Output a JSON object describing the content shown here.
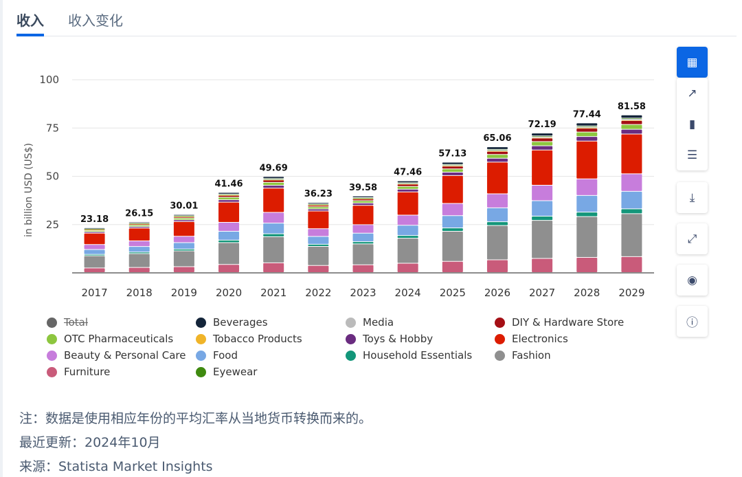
{
  "tabs": [
    {
      "label": "收入"
    },
    {
      "label": "收入变化"
    }
  ],
  "sidebar": [
    {
      "icon": "dashboard-icon",
      "glyph": "▦"
    },
    {
      "icon": "trend-icon",
      "glyph": "↗"
    },
    {
      "icon": "bar-chart-icon",
      "glyph": "▮"
    },
    {
      "icon": "table-icon",
      "glyph": "☰"
    },
    {
      "icon": "download-icon",
      "glyph": "⤓"
    },
    {
      "icon": "fullscreen-icon",
      "glyph": "⤢"
    },
    {
      "icon": "eye-icon",
      "glyph": "◉"
    },
    {
      "icon": "info-icon",
      "glyph": "ⓘ"
    }
  ],
  "chart_data": {
    "type": "bar",
    "stacked": true,
    "ylabel": "in billion USD (US$)",
    "ylim": [
      0,
      100
    ],
    "yticks": [
      25,
      50,
      75,
      100
    ],
    "grid": true,
    "categories": [
      "2017",
      "2018",
      "2019",
      "2020",
      "2021",
      "2022",
      "2023",
      "2024",
      "2025",
      "2026",
      "2027",
      "2028",
      "2029"
    ],
    "totals": [
      23.18,
      26.15,
      30.01,
      41.46,
      49.69,
      36.23,
      39.58,
      47.46,
      57.13,
      65.06,
      72.19,
      77.44,
      81.58
    ],
    "total_labels": [
      "23.18",
      "26.15",
      "30.01",
      "41.46",
      "49.69",
      "36.23",
      "39.58",
      "47.46",
      "57.13",
      "65.06",
      "72.19",
      "77.44",
      "81.58"
    ],
    "series_shares_note": "approximate share of total per segment",
    "series": [
      {
        "name": "Furniture",
        "color": "#c95b7a",
        "share": 0.1
      },
      {
        "name": "Fashion",
        "color": "#8f8f8f",
        "share": 0.27
      },
      {
        "name": "Household Essentials",
        "color": "#13967a",
        "share": 0.03
      },
      {
        "name": "Food",
        "color": "#78a8e4",
        "share": 0.11
      },
      {
        "name": "Beauty & Personal Care",
        "color": "#c77ddc",
        "share": 0.11
      },
      {
        "name": "Electronics",
        "color": "#dc1c00",
        "share": 0.25
      },
      {
        "name": "Toys & Hobby",
        "color": "#6a2c80",
        "share": 0.03
      },
      {
        "name": "OTC Pharmaceuticals",
        "color": "#8dc63f",
        "share": 0.03
      },
      {
        "name": "DIY & Hardware Store",
        "color": "#a50f15",
        "share": 0.025
      },
      {
        "name": "Tobacco Products",
        "color": "#f0b429",
        "share": 0.003
      },
      {
        "name": "Media",
        "color": "#bbbbbb",
        "share": 0.01
      },
      {
        "name": "Eyewear",
        "color": "#3f8a10",
        "share": 0.002
      },
      {
        "name": "Beverages",
        "color": "#14253a",
        "share": 0.02
      }
    ]
  },
  "legend": [
    {
      "name": "Total",
      "color": "#666666",
      "hidden": true
    },
    {
      "name": "Beverages",
      "color": "#14253a"
    },
    {
      "name": "Media",
      "color": "#bbbbbb"
    },
    {
      "name": "DIY & Hardware Store",
      "color": "#a50f15"
    },
    {
      "name": "OTC Pharmaceuticals",
      "color": "#8dc63f"
    },
    {
      "name": "Tobacco Products",
      "color": "#f0b429"
    },
    {
      "name": "Toys & Hobby",
      "color": "#6a2c80"
    },
    {
      "name": "Electronics",
      "color": "#dc1c00"
    },
    {
      "name": "Beauty & Personal Care",
      "color": "#c77ddc"
    },
    {
      "name": "Food",
      "color": "#78a8e4"
    },
    {
      "name": "Household Essentials",
      "color": "#13967a"
    },
    {
      "name": "Fashion",
      "color": "#8f8f8f"
    },
    {
      "name": "Furniture",
      "color": "#c95b7a"
    },
    {
      "name": "Eyewear",
      "color": "#3f8a10"
    }
  ],
  "notes": {
    "note": "注：数据是使用相应年份的平均汇率从当地货币转换而来的。",
    "updated": "最近更新：2024年10月",
    "source": "来源：Statista Market Insights"
  }
}
